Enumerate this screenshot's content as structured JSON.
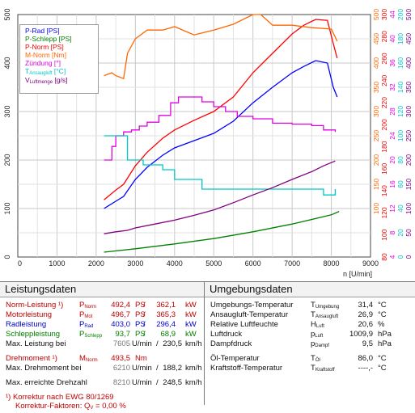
{
  "chart_data": {
    "type": "line",
    "xlabel": "n [U/min]",
    "xlim": [
      0,
      9000
    ],
    "x_ticks": [
      "0",
      "1000",
      "2000",
      "3000",
      "4000",
      "5000",
      "6000",
      "7000",
      "8000",
      "9000"
    ],
    "left_axis": {
      "ylim": [
        0,
        500
      ],
      "ticks": [
        "0",
        "100",
        "200",
        "300",
        "400",
        "500"
      ]
    },
    "right_axis_power": {
      "ticks": [
        "100",
        "150",
        "200",
        "250",
        "300",
        "350",
        "400",
        "450",
        "500"
      ],
      "color": "#ff6600"
    },
    "right_axis_torque": {
      "ticks": [
        "80",
        "100",
        "120",
        "140",
        "160",
        "180",
        "200",
        "220",
        "240",
        "260",
        "280",
        "300"
      ],
      "color": "#e60000"
    },
    "right_axis_ignition": {
      "ticks": [
        "4",
        "8",
        "12",
        "16",
        "20",
        "24",
        "28",
        "32",
        "36",
        "40",
        "44"
      ],
      "color": "#e000e0"
    },
    "right_axis_temp": {
      "ticks": [
        "0",
        "20",
        "40",
        "60",
        "80",
        "100",
        "120",
        "140",
        "160",
        "180",
        "200"
      ],
      "color": "#00c8c8"
    },
    "right_axis_airflow": {
      "ticks": [
        "0",
        "50",
        "100",
        "150",
        "200",
        "250",
        "300",
        "350",
        "400",
        "450",
        "500"
      ],
      "color": "#800080"
    },
    "grid": true,
    "legend_position": "top-left",
    "series": [
      {
        "name": "P-Rad [PS]",
        "color": "#0000ff",
        "x": [
          2200,
          2500,
          2700,
          3000,
          3300,
          3700,
          4000,
          4500,
          5000,
          5500,
          6000,
          6500,
          7000,
          7300,
          7600,
          7900,
          8050,
          8150
        ],
        "y": [
          100,
          115,
          125,
          160,
          185,
          210,
          225,
          240,
          255,
          280,
          318,
          350,
          380,
          393,
          405,
          400,
          350,
          330
        ]
      },
      {
        "name": "P-Schlepp [PS]",
        "color": "#008000",
        "x": [
          2200,
          3000,
          4000,
          5000,
          6000,
          7000,
          8000,
          8200
        ],
        "y": [
          10,
          17,
          27,
          38,
          52,
          68,
          87,
          94
        ]
      },
      {
        "name": "P-Norm [PS]",
        "color": "#ff0000",
        "x": [
          2200,
          2500,
          2700,
          3000,
          3300,
          3700,
          4000,
          4500,
          5000,
          5500,
          6000,
          6500,
          7000,
          7300,
          7600,
          7900,
          8050,
          8150
        ],
        "y": [
          118,
          138,
          150,
          188,
          216,
          245,
          262,
          282,
          300,
          330,
          380,
          420,
          460,
          478,
          490,
          488,
          440,
          410
        ]
      },
      {
        "name": "M-Norm [Nm]",
        "color": "#ff6600",
        "x": [
          2200,
          2400,
          2500,
          2700,
          2800,
          3000,
          3300,
          3700,
          4000,
          4500,
          5000,
          5500,
          6000,
          6200,
          6500,
          7000,
          7500,
          8000,
          8150
        ],
        "y": [
          374,
          380,
          374,
          368,
          420,
          450,
          468,
          468,
          475,
          458,
          468,
          480,
          500,
          500,
          478,
          478,
          473,
          470,
          445
        ]
      },
      {
        "name": "Zündung [°]",
        "color": "#e000e0",
        "x": [
          2200,
          2400,
          2500,
          2700,
          2900,
          3100,
          3300,
          3600,
          3900,
          4100,
          4400,
          4700,
          5000,
          5300,
          5600,
          6000,
          6500,
          7000,
          7500,
          7800,
          8100
        ],
        "y": [
          200,
          228,
          250,
          258,
          262,
          270,
          278,
          292,
          318,
          330,
          330,
          320,
          310,
          300,
          290,
          285,
          276,
          274,
          271,
          262,
          258
        ]
      },
      {
        "name": "T-Ansaugluft [°C]",
        "color": "#00c8c8",
        "x": [
          2200,
          2500,
          2800,
          3200,
          3700,
          4000,
          4700,
          5500,
          6500,
          7400,
          7800,
          8100
        ],
        "y": [
          250,
          250,
          200,
          190,
          180,
          160,
          140,
          140,
          140,
          140,
          128,
          140
        ]
      },
      {
        "name": "V-Luftmenge [g/s]",
        "color": "#800080",
        "x": [
          2200,
          2500,
          2800,
          3000,
          3500,
          4000,
          4500,
          5000,
          5500,
          6000,
          6500,
          7000,
          7500,
          7800,
          8100
        ],
        "y": [
          48,
          52,
          55,
          60,
          68,
          76,
          86,
          97,
          112,
          128,
          143,
          160,
          176,
          188,
          198
        ]
      }
    ]
  },
  "legend": {
    "p_rad": "P-Rad [PS]",
    "p_schlepp": "P-Schlepp [PS]",
    "p_norm": "P-Norm [PS]",
    "m_norm": "M-Norm [Nm]",
    "zuendung": "Zündung [°]",
    "t_main": "T",
    "t_sub": "Ansaugluft",
    "t_unit": " [°C]",
    "v_main": "V",
    "v_sub": "Luftmenge",
    "v_unit": " [g/s]"
  },
  "leistungsdaten": {
    "title": "Leistungsdaten",
    "rows": [
      {
        "label": "Norm-Leistung ¹)",
        "sym": "P",
        "sub": "Norm",
        "v1": "492,4",
        "u1": "PS",
        "v2": "362,1",
        "u2": "kW"
      },
      {
        "label": "Motorleistung",
        "sym": "P",
        "sub": "Mot",
        "v1": "496,7",
        "u1": "PS",
        "v2": "365,3",
        "u2": "kW"
      },
      {
        "label": "Radleistung",
        "sym": "P",
        "sub": "Rad",
        "v1": "403,0",
        "u1": "PS",
        "v2": "296,4",
        "u2": "kW"
      },
      {
        "label": "Schleppleistung",
        "sym": "P",
        "sub": "Schlepp",
        "v1": "93,7",
        "u1": "PS",
        "v2": "68,9",
        "u2": "kW"
      },
      {
        "label": "Max. Leistung bei",
        "sym": "",
        "sub": "",
        "v1": "7605",
        "u1": "U/min",
        "v2": "230,5",
        "u2": "km/h"
      }
    ],
    "torque": {
      "label": "Drehmoment ¹)",
      "sym": "M",
      "sub": "Norm",
      "value": "493,5",
      "unit": "Nm"
    },
    "torque_at": {
      "label": "Max. Drehmoment bei",
      "rpm": "6210",
      "rpm_unit": "U/min",
      "speed": "188,2",
      "speed_unit": "km/h"
    },
    "max_rpm": {
      "label": "Max. erreichte Drehzahl",
      "rpm": "8210",
      "rpm_unit": "U/min",
      "speed": "248,5",
      "speed_unit": "km/h"
    },
    "note1": "¹) Korrektur nach EWG 80/1269",
    "note2_pre": "Korrektur-Faktoren: Q",
    "note2_sub": "V",
    "note2_post": " =   0,00 %"
  },
  "umgebungsdaten": {
    "title": "Umgebungsdaten",
    "rows": [
      {
        "label": "Umgebungs-Temperatur",
        "sym": "T",
        "sub": "Umgebung",
        "value": "31,4",
        "unit": "°C"
      },
      {
        "label": "Ansaugluft-Temperatur",
        "sym": "T",
        "sub": "Ansaugluft",
        "value": "26,9",
        "unit": "°C"
      },
      {
        "label": "Relative Luftfeuchte",
        "sym": "H",
        "sub": "Luft",
        "value": "20,6",
        "unit": "%"
      },
      {
        "label": "Luftdruck",
        "sym": "p",
        "sub": "Luft",
        "value": "1009,9",
        "unit": "hPa"
      },
      {
        "label": "Dampfdruck",
        "sym": "p",
        "sub": "Dampf",
        "value": "9,5",
        "unit": "hPa"
      },
      {
        "label": "Öl-Temperatur",
        "sym": "T",
        "sub": "Öl",
        "value": "86,0",
        "unit": "°C"
      },
      {
        "label": "Kraftstoff-Temperatur",
        "sym": "T",
        "sub": "Kraftstoff",
        "value": "----,-",
        "unit": "°C"
      }
    ]
  }
}
